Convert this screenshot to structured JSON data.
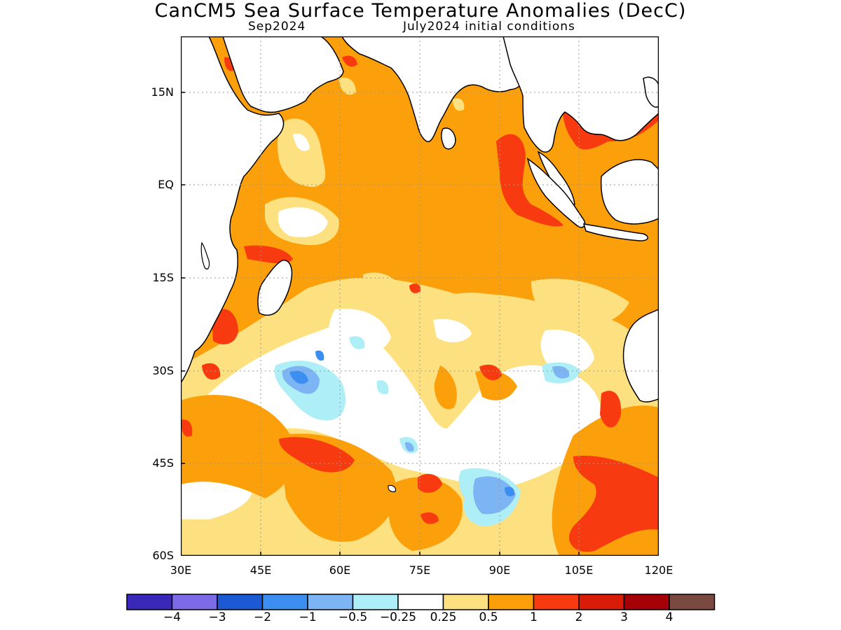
{
  "title": "CanCM5 Sea Surface Temperature Anomalies (DecC)",
  "subtitle_left": "Sep2024",
  "subtitle_right": "July2024 initial conditions",
  "y_axis_labels": [
    "15N",
    "EQ",
    "15S",
    "30S",
    "45S",
    "60S"
  ],
  "x_axis_labels": [
    "30E",
    "45E",
    "60E",
    "75E",
    "90E",
    "105E",
    "120E"
  ],
  "colorbar": {
    "colors": [
      "#3a28b8",
      "#7b6be6",
      "#1b5ad2",
      "#3c8ff0",
      "#7db4f4",
      "#aeeef6",
      "#ffffff",
      "#fde07f",
      "#fb9f0a",
      "#f83a10",
      "#d81c08",
      "#a50008",
      "#7a4a40"
    ],
    "labels": [
      "−4",
      "−3",
      "−2",
      "−1",
      "−0.5",
      "−0.25",
      "0.25",
      "0.5",
      "1",
      "2",
      "3",
      "4"
    ]
  },
  "map": {
    "region": "Indian Ocean",
    "lon_range": [
      30,
      120
    ],
    "lat_range": [
      -60,
      24
    ],
    "land_color": "#ffffff",
    "coast_color": "#000000"
  }
}
